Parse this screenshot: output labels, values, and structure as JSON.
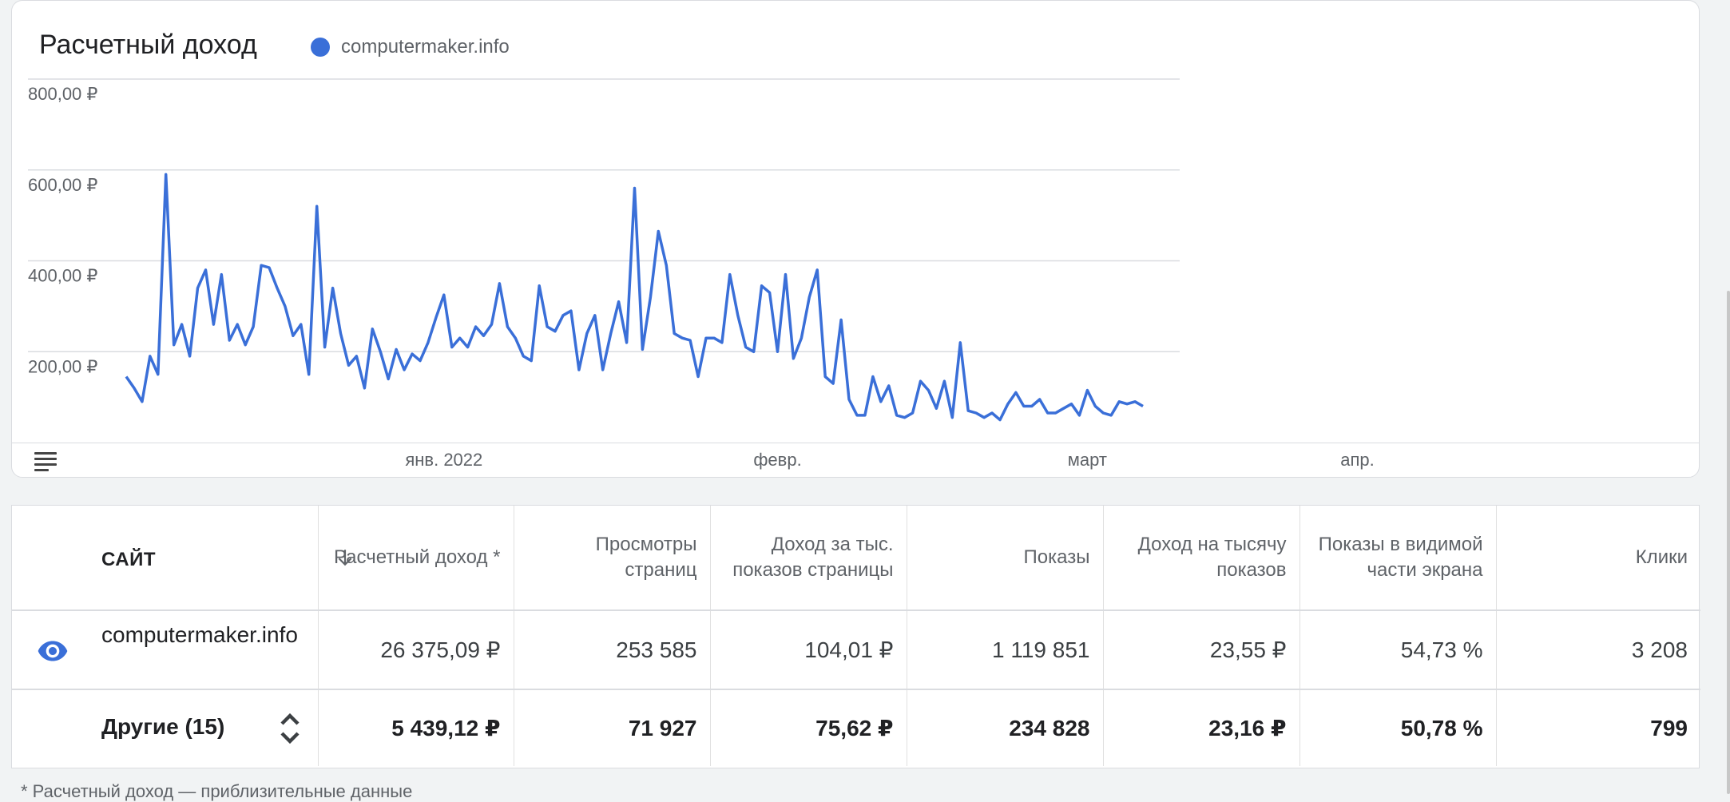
{
  "card": {
    "title": "Расчетный доход",
    "legend_label": "computermaker.info"
  },
  "chart_data": {
    "type": "line",
    "series": [
      {
        "name": "computermaker.info",
        "color": "#3a6fd8",
        "values": [
          145,
          120,
          90,
          190,
          150,
          590,
          215,
          260,
          190,
          340,
          380,
          260,
          370,
          225,
          260,
          215,
          255,
          390,
          385,
          340,
          300,
          235,
          260,
          150,
          520,
          210,
          340,
          240,
          170,
          190,
          120,
          250,
          200,
          140,
          205,
          160,
          195,
          180,
          220,
          275,
          325,
          210,
          230,
          210,
          255,
          235,
          260,
          350,
          255,
          230,
          190,
          180,
          345,
          255,
          245,
          280,
          290,
          160,
          240,
          280,
          160,
          240,
          310,
          220,
          560,
          205,
          320,
          465,
          390,
          240,
          230,
          225,
          145,
          230,
          230,
          220,
          370,
          280,
          210,
          200,
          345,
          330,
          200,
          370,
          185,
          230,
          320,
          380,
          145,
          130,
          270,
          95,
          60,
          60,
          145,
          90,
          125,
          60,
          55,
          65,
          135,
          115,
          75,
          135,
          55,
          220,
          70,
          65,
          55,
          65,
          50,
          85,
          110,
          80,
          80,
          95,
          65,
          65,
          75,
          85,
          60,
          115,
          80,
          65,
          60,
          90,
          85,
          90,
          80
        ]
      }
    ],
    "x_labels": [
      "янв. 2022",
      "февр.",
      "март",
      "апр."
    ],
    "y_ticks": [
      "800,00 ₽",
      "600,00 ₽",
      "400,00 ₽",
      "200,00 ₽"
    ],
    "ylim": [
      0,
      800
    ],
    "grid": true
  },
  "table": {
    "headers": {
      "site": "САЙТ",
      "revenue": "Расчетный доход *",
      "pageviews": "Просмотры страниц",
      "page_rpm": "Доход за тыс. показов страницы",
      "impressions": "Показы",
      "impression_rpm": "Доход на тысячу показов",
      "viewability": "Показы в видимой части экрана",
      "clicks": "Клики"
    },
    "rows": [
      {
        "site": "computermaker.info",
        "revenue": "26 375,09 ₽",
        "pageviews": "253 585",
        "page_rpm": "104,01 ₽",
        "impressions": "1 119 851",
        "impression_rpm": "23,55 ₽",
        "viewability": "54,73 %",
        "clicks": "3 208"
      },
      {
        "site": "Другие (15)",
        "revenue": "5 439,12 ₽",
        "pageviews": "71 927",
        "page_rpm": "75,62 ₽",
        "impressions": "234 828",
        "impression_rpm": "23,16 ₽",
        "viewability": "50,78 %",
        "clicks": "799"
      }
    ]
  },
  "footnote": "* Расчетный доход — приблизительные данные"
}
